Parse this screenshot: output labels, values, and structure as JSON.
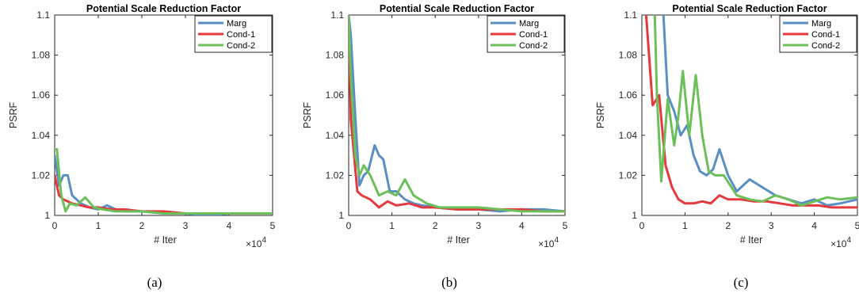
{
  "colors": {
    "Marg": "#5b8fc4",
    "Cond-1": "#e3393f",
    "Cond-2": "#6cc05a"
  },
  "chart_data": [
    {
      "type": "line",
      "title": "Potential Scale Reduction Factor",
      "xlabel": "# Iter",
      "ylabel": "PSRF",
      "x_multiplier": "×10^4",
      "caption": "(a)",
      "xlim": [
        0,
        5
      ],
      "ylim": [
        1,
        1.1
      ],
      "xticks": [
        "0",
        "1",
        "2",
        "3",
        "4",
        "5"
      ],
      "yticks": [
        "1",
        "1.02",
        "1.04",
        "1.06",
        "1.08",
        "1.1"
      ],
      "legend_position": "top-right",
      "series": [
        {
          "name": "Marg",
          "x": [
            0,
            0.1,
            0.2,
            0.3,
            0.4,
            0.6,
            0.8,
            1,
            1.2,
            1.4,
            1.6,
            1.8,
            2,
            2.5,
            3,
            3.5,
            4,
            4.5,
            5
          ],
          "y": [
            1.03,
            1.015,
            1.02,
            1.02,
            1.01,
            1.006,
            1.004,
            1.003,
            1.005,
            1.003,
            1.002,
            1.002,
            1.002,
            1.001,
            1.001,
            1,
            1.001,
            1.001,
            1.001
          ]
        },
        {
          "name": "Cond-1",
          "x": [
            0,
            0.1,
            0.2,
            0.4,
            0.6,
            0.8,
            1,
            1.3,
            1.6,
            2,
            2.5,
            3,
            3.5,
            4,
            4.5,
            5
          ],
          "y": [
            1.02,
            1.01,
            1.008,
            1.006,
            1.005,
            1.004,
            1.004,
            1.003,
            1.003,
            1.002,
            1.002,
            1.001,
            1.001,
            1.001,
            1.001,
            1.001
          ]
        },
        {
          "name": "Cond-2",
          "x": [
            0,
            0.05,
            0.15,
            0.25,
            0.35,
            0.5,
            0.7,
            0.9,
            1.1,
            1.4,
            1.7,
            2,
            2.5,
            3,
            3.5,
            4,
            4.5,
            5
          ],
          "y": [
            1.033,
            1.033,
            1.01,
            1.002,
            1.006,
            1.005,
            1.009,
            1.004,
            1.003,
            1.002,
            1.002,
            1.002,
            1.001,
            1.001,
            1.001,
            1.001,
            1.001,
            1.001
          ]
        }
      ]
    },
    {
      "type": "line",
      "title": "Potential Scale Reduction Factor",
      "xlabel": "# Iter",
      "ylabel": "PSRF",
      "x_multiplier": "×10^4",
      "caption": "(b)",
      "xlim": [
        0,
        5
      ],
      "ylim": [
        1,
        1.1
      ],
      "xticks": [
        "0",
        "1",
        "2",
        "3",
        "4",
        "5"
      ],
      "yticks": [
        "1",
        "1.02",
        "1.04",
        "1.06",
        "1.08",
        "1.1"
      ],
      "legend_position": "top-right",
      "series": [
        {
          "name": "Marg",
          "x": [
            0,
            0.05,
            0.15,
            0.25,
            0.35,
            0.45,
            0.6,
            0.7,
            0.8,
            0.95,
            1.1,
            1.3,
            1.5,
            1.7,
            2,
            2.5,
            3,
            3.5,
            4,
            4.5,
            5
          ],
          "y": [
            1.1,
            1.09,
            1.05,
            1.015,
            1.02,
            1.022,
            1.035,
            1.03,
            1.028,
            1.012,
            1.012,
            1.008,
            1.006,
            1.005,
            1.004,
            1.003,
            1.003,
            1.002,
            1.003,
            1.003,
            1.002
          ]
        },
        {
          "name": "Cond-1",
          "x": [
            0,
            0.05,
            0.1,
            0.2,
            0.3,
            0.5,
            0.7,
            0.9,
            1.1,
            1.4,
            1.7,
            2,
            2.5,
            3,
            3.5,
            4,
            4.5,
            5
          ],
          "y": [
            1.1,
            1.048,
            1.036,
            1.012,
            1.01,
            1.008,
            1.004,
            1.007,
            1.005,
            1.006,
            1.004,
            1.004,
            1.003,
            1.003,
            1.003,
            1.003,
            1.002,
            1.002
          ]
        },
        {
          "name": "Cond-2",
          "x": [
            0,
            0.05,
            0.1,
            0.15,
            0.25,
            0.35,
            0.5,
            0.7,
            0.9,
            1.1,
            1.3,
            1.5,
            1.8,
            2.1,
            2.5,
            3,
            3.5,
            4,
            4.5,
            5
          ],
          "y": [
            1.1,
            1.07,
            1.05,
            1.03,
            1.02,
            1.025,
            1.02,
            1.01,
            1.012,
            1.01,
            1.018,
            1.01,
            1.006,
            1.004,
            1.004,
            1.004,
            1.003,
            1.002,
            1.002,
            1.002
          ]
        }
      ]
    },
    {
      "type": "line",
      "title": "Potential Scale Reduction Factor",
      "xlabel": "# Iter",
      "ylabel": "PSRF",
      "x_multiplier": "×10^4",
      "caption": "(c)",
      "xlim": [
        0,
        5
      ],
      "ylim": [
        1,
        1.1
      ],
      "xticks": [
        "0",
        "1",
        "2",
        "3",
        "4",
        "5"
      ],
      "yticks": [
        "1",
        "1.02",
        "1.04",
        "1.06",
        "1.08",
        "1.1"
      ],
      "legend_position": "top-right",
      "series": [
        {
          "name": "Marg",
          "x": [
            0.5,
            0.6,
            0.75,
            0.9,
            1.05,
            1.2,
            1.35,
            1.5,
            1.65,
            1.8,
            2,
            2.2,
            2.5,
            2.8,
            3.1,
            3.4,
            3.7,
            4,
            4.3,
            4.6,
            5
          ],
          "y": [
            1.1,
            1.06,
            1.052,
            1.04,
            1.045,
            1.03,
            1.022,
            1.02,
            1.023,
            1.033,
            1.02,
            1.012,
            1.018,
            1.014,
            1.01,
            1.008,
            1.006,
            1.008,
            1.005,
            1.006,
            1.008
          ]
        },
        {
          "name": "Cond-1",
          "x": [
            0.1,
            0.25,
            0.4,
            0.55,
            0.7,
            0.85,
            1,
            1.2,
            1.4,
            1.6,
            1.8,
            2,
            2.3,
            2.6,
            2.9,
            3.2,
            3.5,
            3.8,
            4.1,
            4.4,
            4.7,
            5
          ],
          "y": [
            1.1,
            1.055,
            1.06,
            1.025,
            1.014,
            1.008,
            1.006,
            1.006,
            1.007,
            1.006,
            1.01,
            1.008,
            1.008,
            1.007,
            1.007,
            1.006,
            1.005,
            1.005,
            1.005,
            1.004,
            1.004,
            1.004
          ]
        },
        {
          "name": "Cond-2",
          "x": [
            0.3,
            0.35,
            0.45,
            0.6,
            0.75,
            0.85,
            0.95,
            1.1,
            1.25,
            1.4,
            1.55,
            1.7,
            1.9,
            2.2,
            2.5,
            2.8,
            3.1,
            3.4,
            3.7,
            4,
            4.3,
            4.6,
            5
          ],
          "y": [
            1.1,
            1.06,
            1.017,
            1.058,
            1.035,
            1.05,
            1.072,
            1.04,
            1.07,
            1.04,
            1.022,
            1.02,
            1.02,
            1.01,
            1.008,
            1.007,
            1.01,
            1.008,
            1.005,
            1.007,
            1.009,
            1.008,
            1.009
          ]
        }
      ]
    }
  ]
}
